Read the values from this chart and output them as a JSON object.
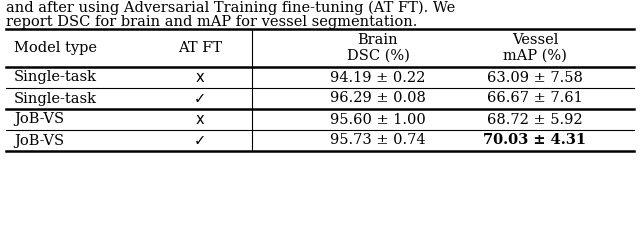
{
  "caption_line1": "and after using Adversarial Training fine-tuning (AT FT). We",
  "caption_line2": "report DSC for brain and mAP for vessel segmentation.",
  "rows": [
    [
      "Single-task",
      "x",
      "94.19 ± 0.22",
      "63.09 ± 7.58",
      false
    ],
    [
      "Single-task",
      "✓",
      "96.29 ± 0.08",
      "66.67 ± 7.61",
      false
    ],
    [
      "JoB-VS",
      "x",
      "95.60 ± 1.00",
      "68.72 ± 5.92",
      false
    ],
    [
      "JoB-VS",
      "✓",
      "95.73 ± 0.74",
      "70.03 ± 4.31",
      true
    ]
  ],
  "bg_color": "#ffffff",
  "text_color": "#000000",
  "font_size": 10.5,
  "caption_font_size": 10.5,
  "thick_lw": 1.8,
  "thin_lw": 0.8
}
